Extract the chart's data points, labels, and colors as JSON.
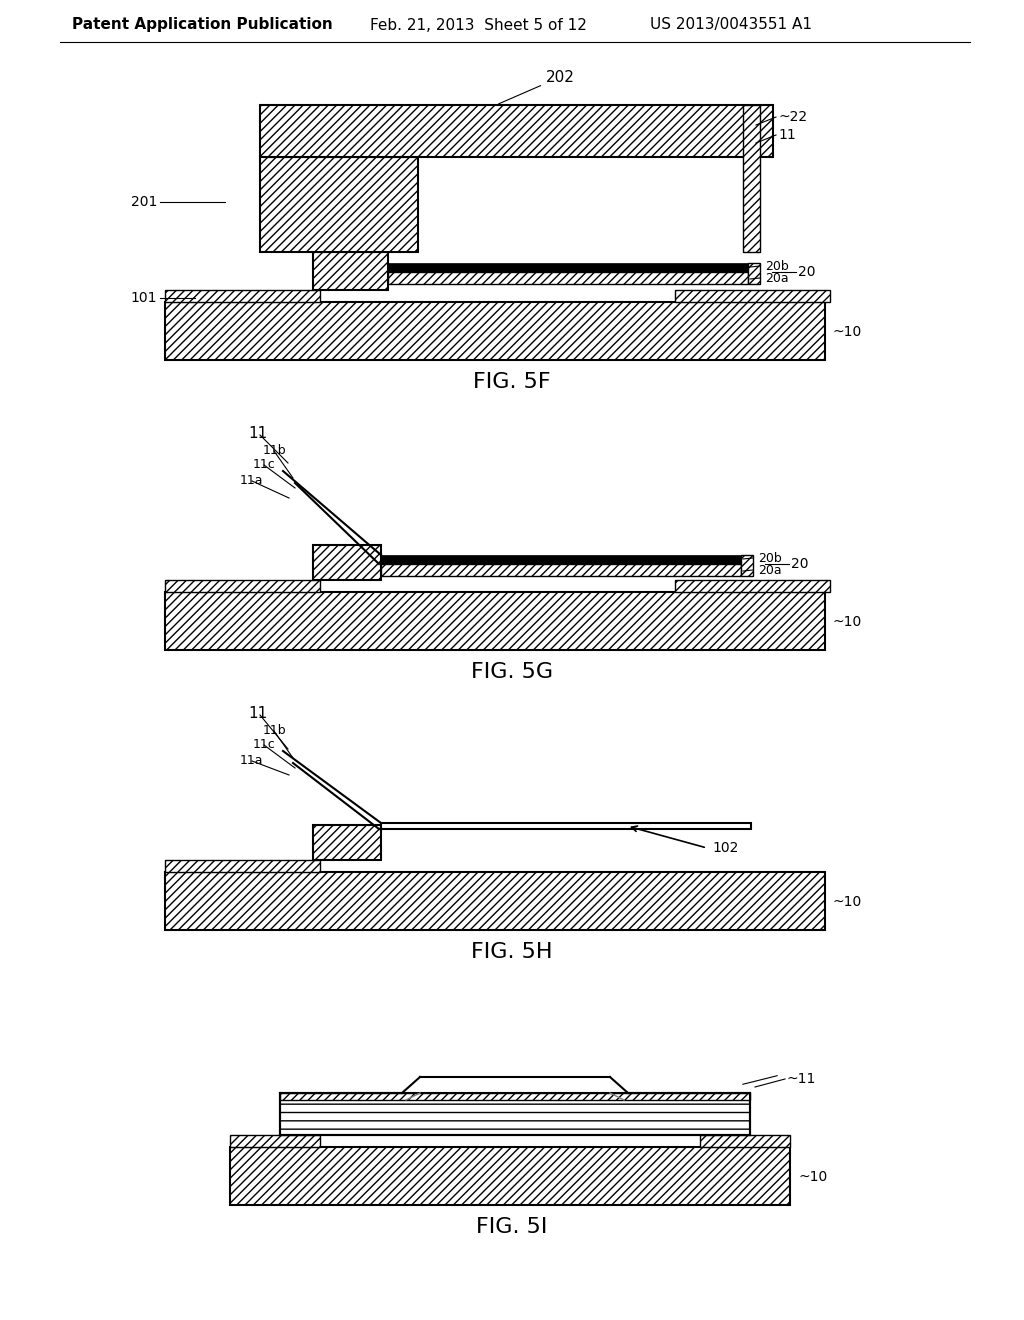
{
  "bg": "#ffffff",
  "lc": "#000000",
  "header1": "Patent Application Publication",
  "header2": "Feb. 21, 2013  Sheet 5 of 12",
  "header3": "US 2013/0043551 A1"
}
